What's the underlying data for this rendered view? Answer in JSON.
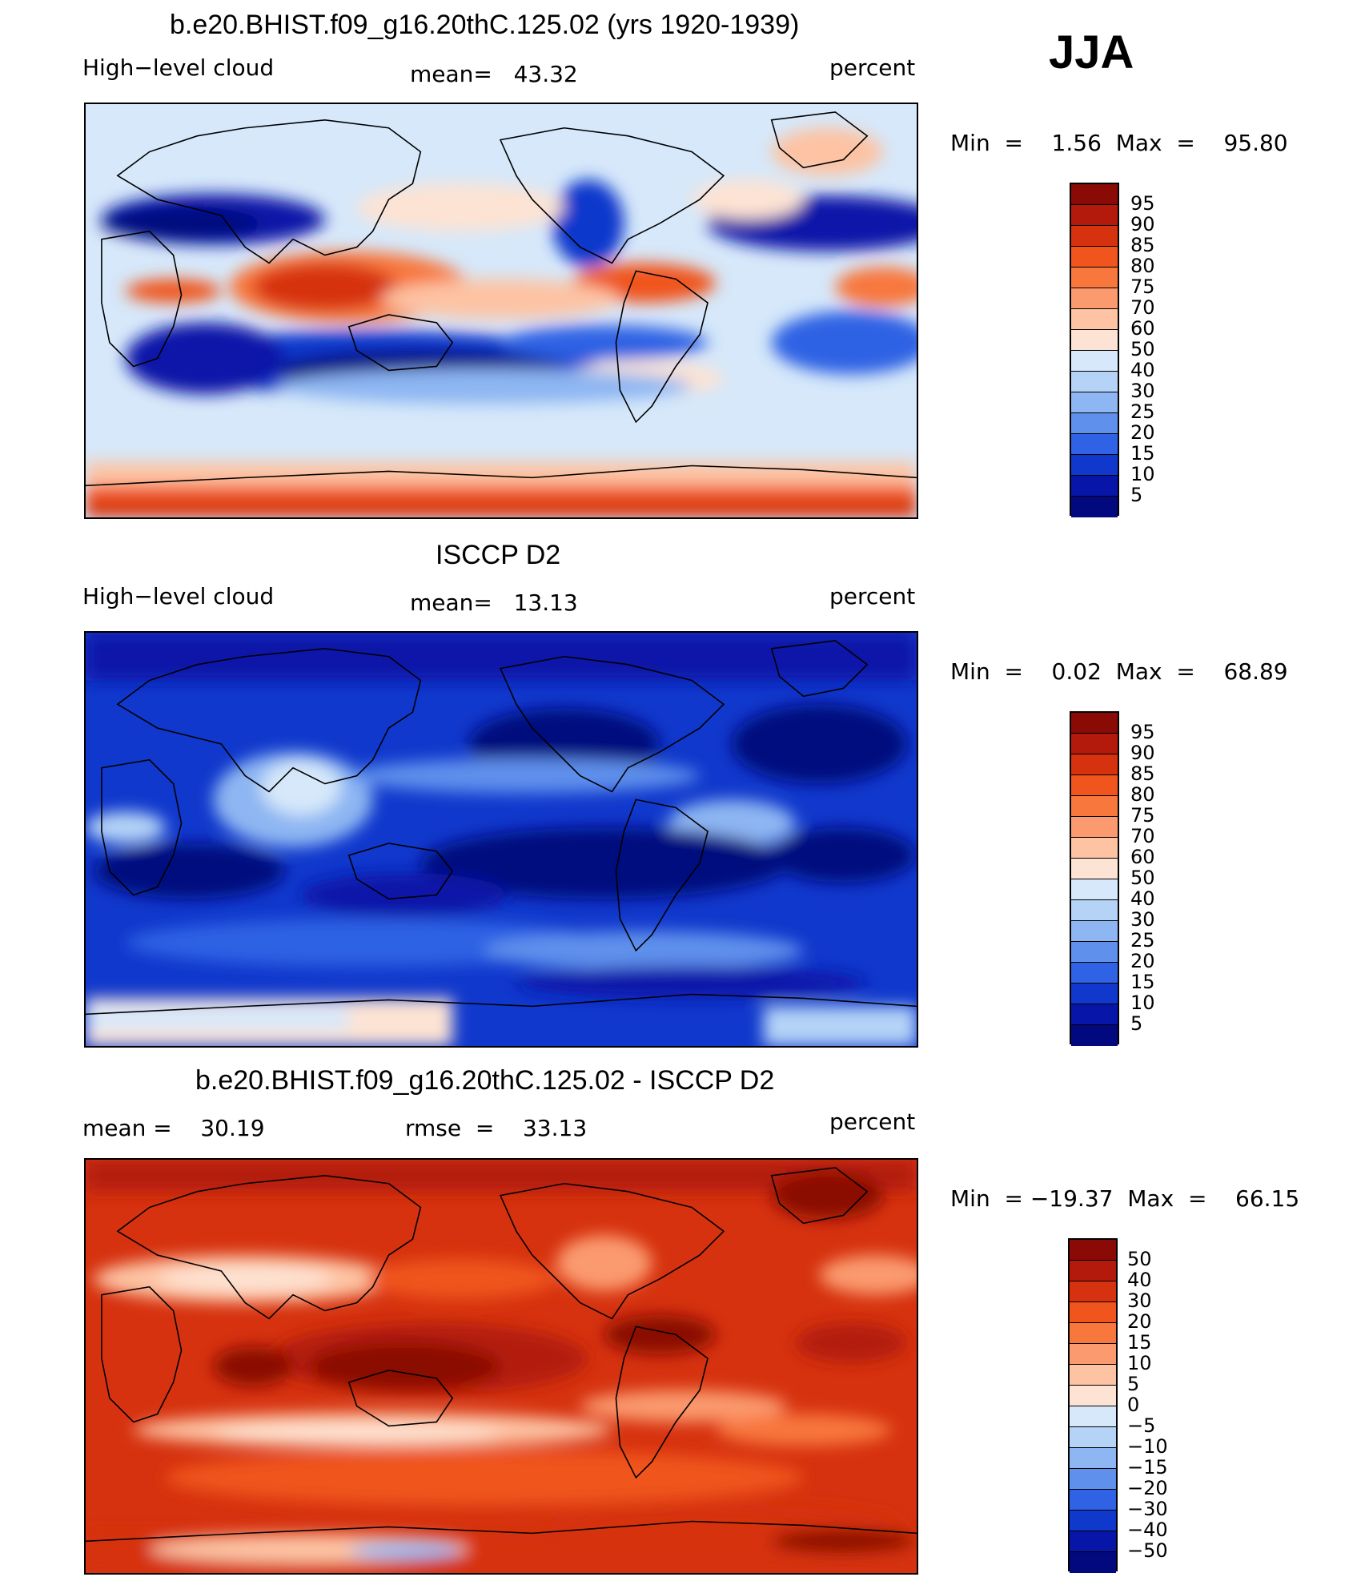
{
  "season": "JJA",
  "panels": [
    {
      "title": "b.e20.BHIST.f09_g16.20thC.125.02 (yrs 1920-1939)",
      "left_label": "High−level cloud",
      "center_label": "mean=   43.32",
      "right_label": "percent",
      "minmax": "Min  =    1.56  Max  =    95.80",
      "colorbar": {
        "levels": [
          "95",
          "90",
          "85",
          "80",
          "75",
          "70",
          "60",
          "50",
          "40",
          "30",
          "25",
          "20",
          "15",
          "10",
          "5"
        ],
        "colors": [
          "#8a0a06",
          "#b31a0c",
          "#d6320f",
          "#f0551e",
          "#f8773d",
          "#fb9a6e",
          "#fdc3a3",
          "#fde3d3",
          "#d6e8fa",
          "#b4d3f7",
          "#8db6f2",
          "#5f90ec",
          "#2f62e4",
          "#1038cc",
          "#0716a8",
          "#02087e"
        ]
      }
    },
    {
      "title": "ISCCP D2",
      "left_label": "High−level cloud",
      "center_label": "mean=   13.13",
      "right_label": "percent",
      "minmax": "Min  =    0.02  Max  =    68.89",
      "colorbar": {
        "levels": [
          "95",
          "90",
          "85",
          "80",
          "75",
          "70",
          "60",
          "50",
          "40",
          "30",
          "25",
          "20",
          "15",
          "10",
          "5"
        ],
        "colors": [
          "#8a0a06",
          "#b31a0c",
          "#d6320f",
          "#f0551e",
          "#f8773d",
          "#fb9a6e",
          "#fdc3a3",
          "#fde3d3",
          "#d6e8fa",
          "#b4d3f7",
          "#8db6f2",
          "#5f90ec",
          "#2f62e4",
          "#1038cc",
          "#0716a8",
          "#02087e"
        ]
      }
    },
    {
      "title": "b.e20.BHIST.f09_g16.20thC.125.02 - ISCCP D2",
      "left_label": "mean =    30.19",
      "center_label": "rmse  =    33.13",
      "right_label": "percent",
      "minmax": "Min  = −19.37  Max  =    66.15",
      "colorbar": {
        "levels": [
          "50",
          "40",
          "30",
          "20",
          "15",
          "10",
          "5",
          "0",
          "−5",
          "−10",
          "−15",
          "−20",
          "−30",
          "−40",
          "−50"
        ],
        "colors": [
          "#8a0a06",
          "#b31a0c",
          "#d6320f",
          "#f0551e",
          "#f8773d",
          "#fb9a6e",
          "#fdc3a3",
          "#fde3d3",
          "#d6e8fa",
          "#b4d3f7",
          "#8db6f2",
          "#5f90ec",
          "#2f62e4",
          "#1038cc",
          "#0716a8",
          "#02087e"
        ]
      }
    }
  ]
}
